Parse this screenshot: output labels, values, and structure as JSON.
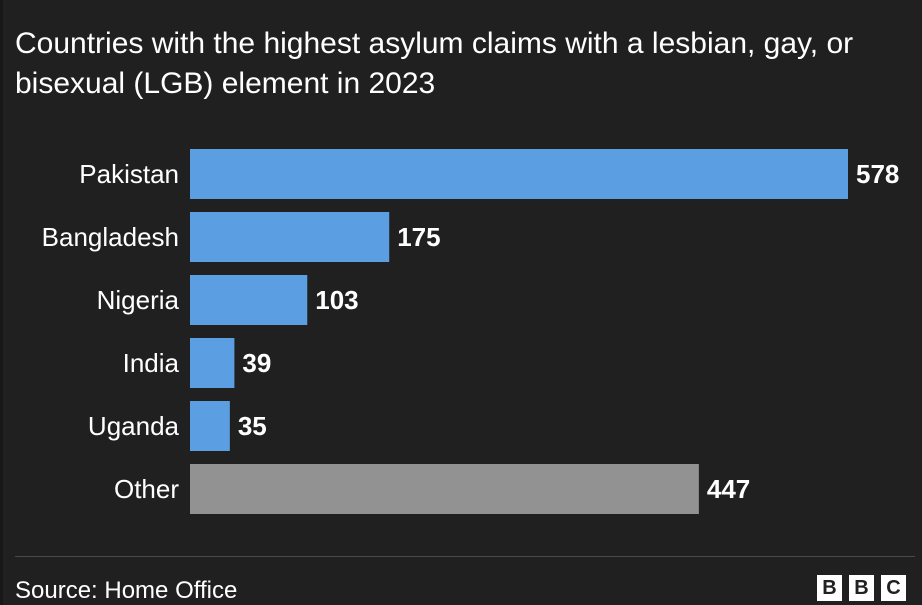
{
  "subtitle": "Countries with the highest asylum claims with a lesbian, gay, or bisexual (LGB) element in 2023",
  "source": "Source: Home Office",
  "logo": "BBC",
  "colors": {
    "highlight": "#5b9ee1",
    "other": "#929292",
    "background": "#202020"
  },
  "chart_data": {
    "type": "bar",
    "orientation": "horizontal",
    "title": "Countries with the highest asylum claims with a lesbian, gay, or bisexual (LGB) element in 2023",
    "categories": [
      "Pakistan",
      "Bangladesh",
      "Nigeria",
      "India",
      "Uganda",
      "Other"
    ],
    "values": [
      578,
      175,
      103,
      39,
      35,
      447
    ],
    "xlim": [
      0,
      578
    ],
    "grid": false,
    "data_labels": true
  }
}
